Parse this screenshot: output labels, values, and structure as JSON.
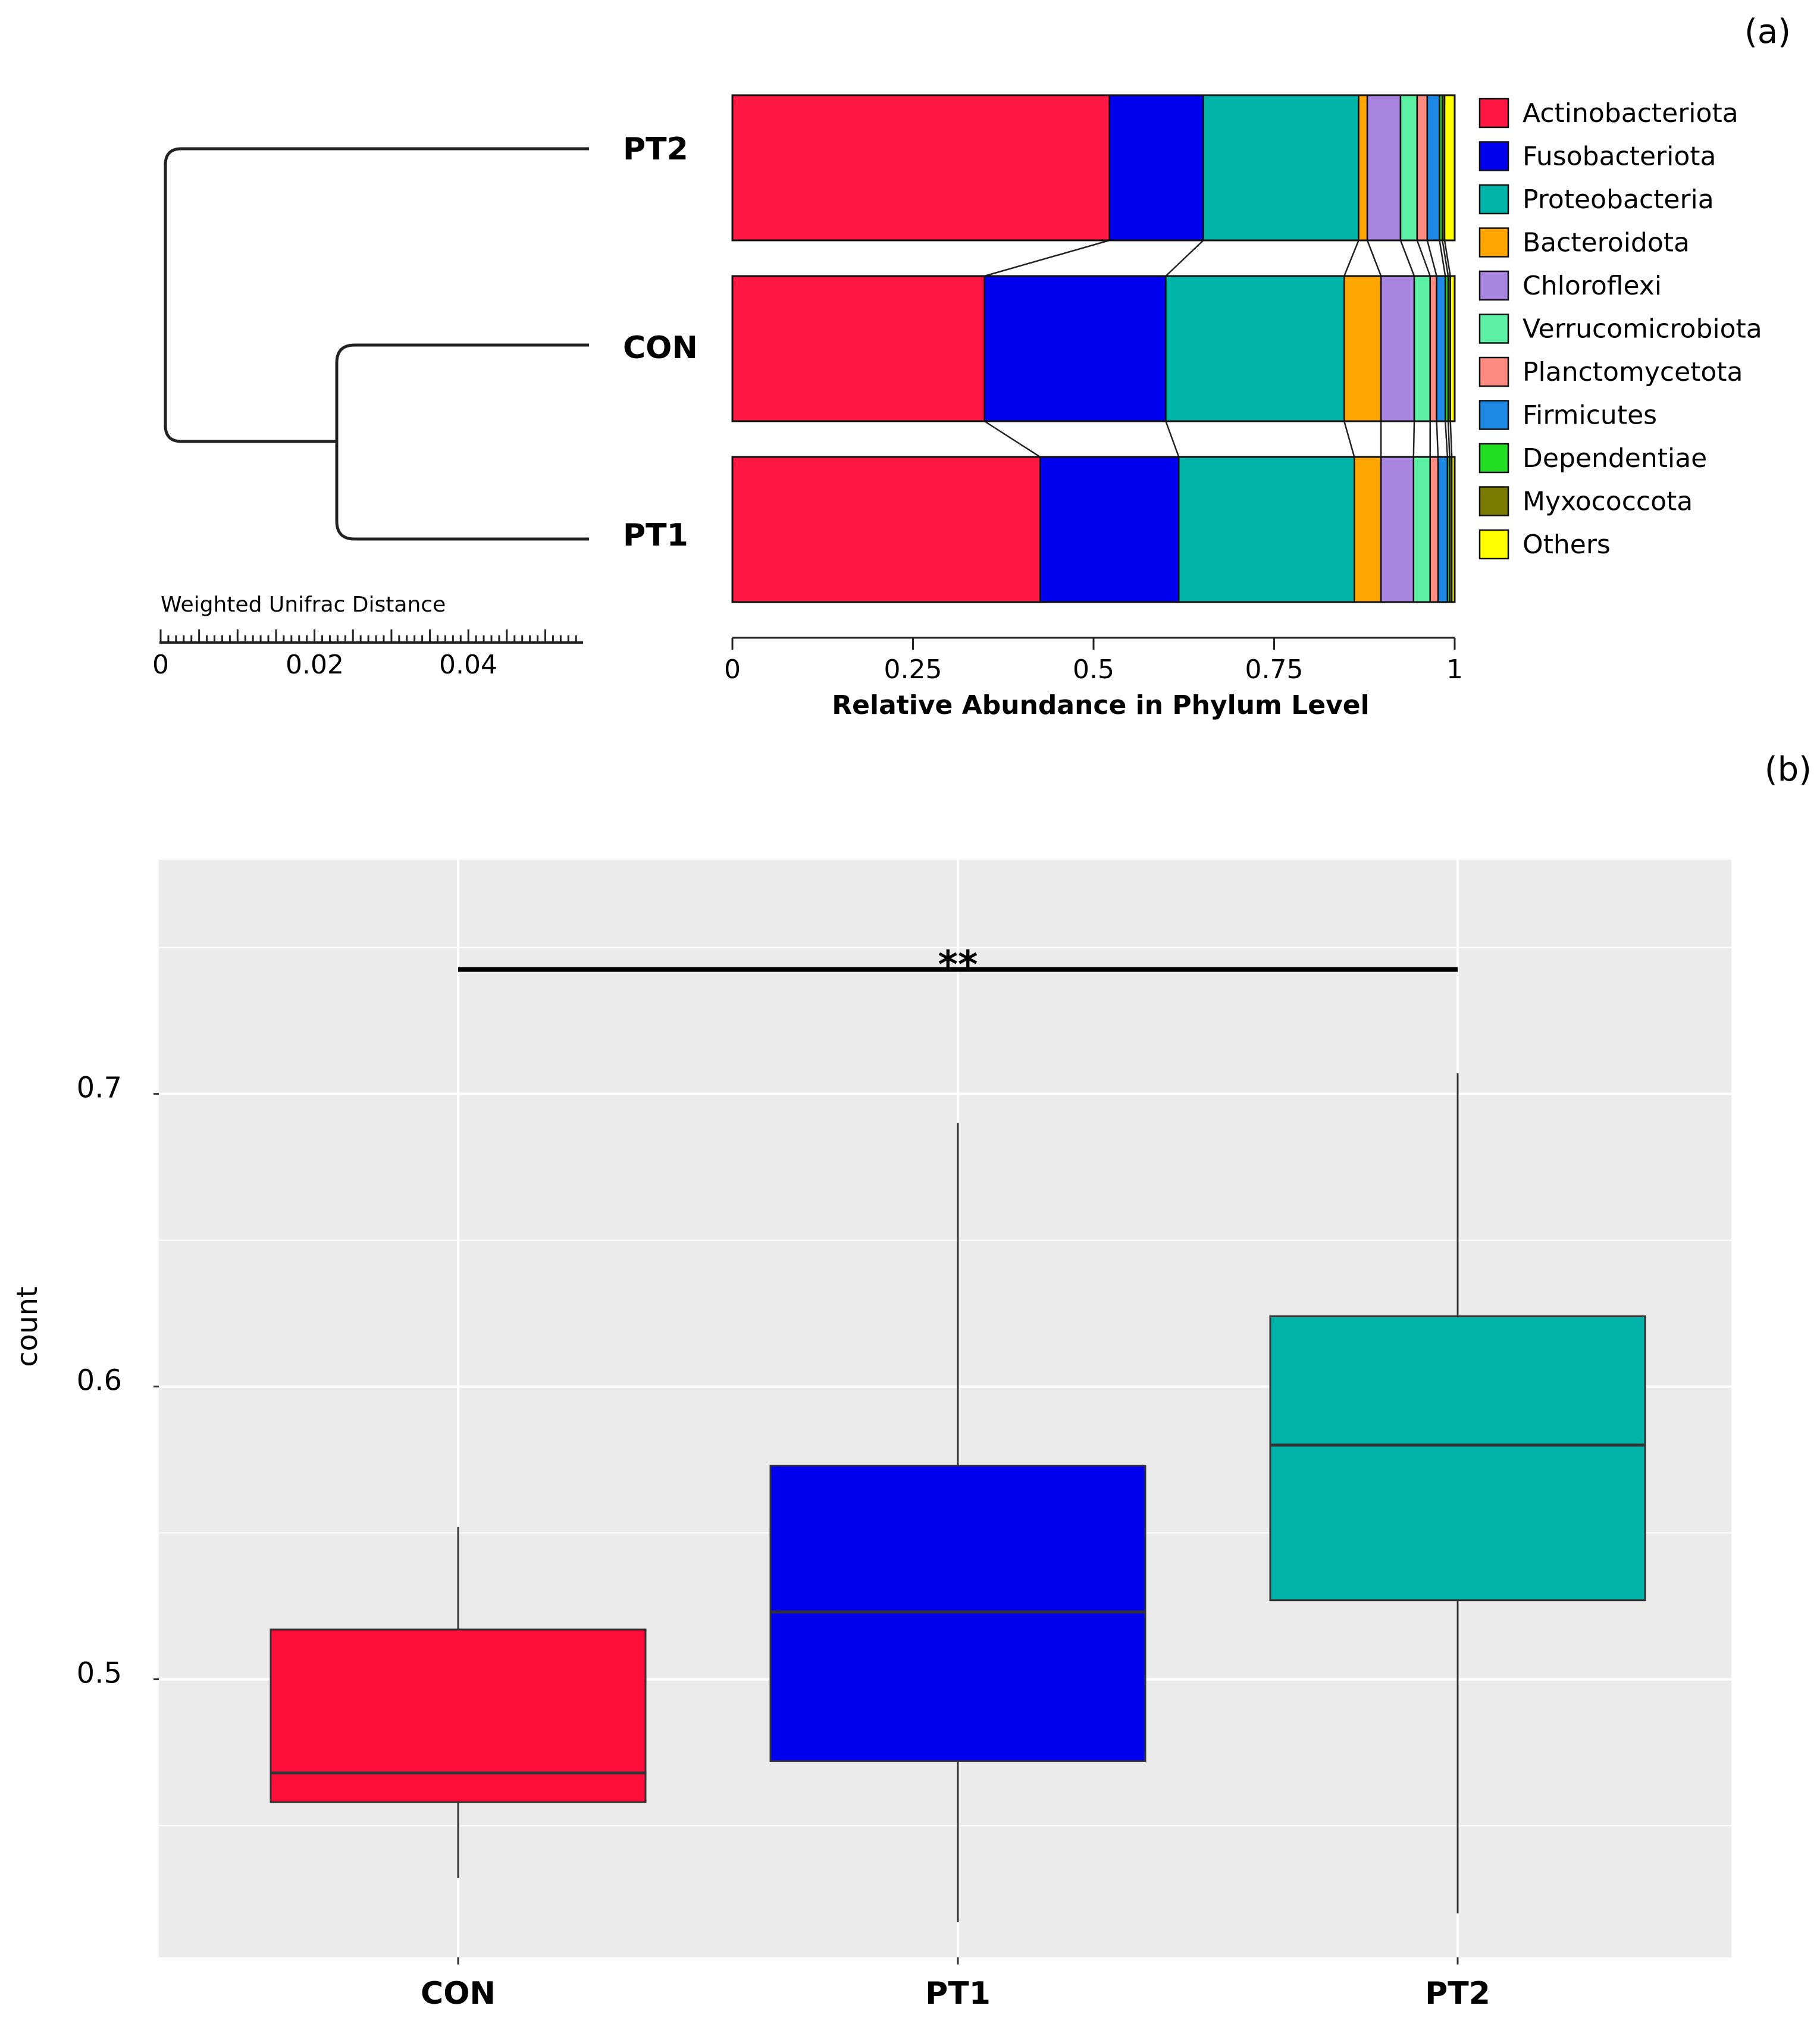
{
  "panel_labels": {
    "a": "(a)",
    "b": "(b)"
  },
  "colors": {
    "Actinobacteriota": "#ff1744",
    "Fusobacteriota": "#0000ee",
    "Proteobacteria": "#00b5a8",
    "Bacteroidota": "#ffa500",
    "Chloroflexi": "#a885e0",
    "Verrucomicrobiota": "#5cf0a5",
    "Planctomycetota": "#ff8a80",
    "Firmicutes": "#1e88e5",
    "Dependentiae": "#22dd22",
    "Myxococcota": "#7a7a00",
    "Others": "#ffff00",
    "box_CON": "#ff0d3b",
    "box_PT1": "#0000ee",
    "box_PT2": "#00b2a8",
    "panel_bg": "#ebebeb",
    "grid": "#ffffff"
  },
  "dendrogram": {
    "title": "Weighted Unifrac Distance",
    "tick_labels": [
      "0",
      "0.02",
      "0.04"
    ],
    "leaves": [
      "PT2",
      "CON",
      "PT1"
    ]
  },
  "chart_data": [
    {
      "type": "bar",
      "orientation": "horizontal-stacked",
      "xlabel": "Relative Abundance in Phylum Level",
      "xlim": [
        0,
        1
      ],
      "xticks": [
        "0",
        "0.25",
        "0.5",
        "0.75",
        "1"
      ],
      "categories": [
        "PT2",
        "CON",
        "PT1"
      ],
      "legend_position": "right",
      "series": [
        {
          "name": "Actinobacteriota",
          "values": [
            0.522,
            0.349,
            0.426
          ]
        },
        {
          "name": "Fusobacteriota",
          "values": [
            0.13,
            0.251,
            0.192
          ]
        },
        {
          "name": "Proteobacteria",
          "values": [
            0.215,
            0.247,
            0.243
          ]
        },
        {
          "name": "Bacteroidota",
          "values": [
            0.012,
            0.051,
            0.037
          ]
        },
        {
          "name": "Chloroflexi",
          "values": [
            0.046,
            0.046,
            0.045
          ]
        },
        {
          "name": "Verrucomicrobiota",
          "values": [
            0.023,
            0.022,
            0.023
          ]
        },
        {
          "name": "Planctomycetota",
          "values": [
            0.014,
            0.009,
            0.011
          ]
        },
        {
          "name": "Firmicutes",
          "values": [
            0.017,
            0.012,
            0.013
          ]
        },
        {
          "name": "Dependentiae",
          "values": [
            0.004,
            0.004,
            0.003
          ]
        },
        {
          "name": "Myxococcota",
          "values": [
            0.003,
            0.003,
            0.003
          ]
        },
        {
          "name": "Others",
          "values": [
            0.014,
            0.006,
            0.004
          ]
        }
      ]
    },
    {
      "type": "box",
      "ylabel": "count",
      "categories": [
        "CON",
        "PT1",
        "PT2"
      ],
      "ylim": [
        0.405,
        0.78
      ],
      "yticks": [
        0.5,
        0.6,
        0.7
      ],
      "ytick_labels": [
        "0.5",
        "0.6",
        "0.7"
      ],
      "grid": true,
      "boxes": [
        {
          "name": "CON",
          "whisker_low": 0.432,
          "q1": 0.458,
          "median": 0.468,
          "q3": 0.517,
          "whisker_high": 0.552
        },
        {
          "name": "PT1",
          "whisker_low": 0.417,
          "q1": 0.472,
          "median": 0.523,
          "q3": 0.573,
          "whisker_high": 0.69
        },
        {
          "name": "PT2",
          "whisker_low": 0.42,
          "q1": 0.527,
          "median": 0.58,
          "q3": 0.624,
          "whisker_high": 0.707
        }
      ],
      "significance": {
        "from": "CON",
        "to": "PT2",
        "label": "**",
        "y": 0.7425
      }
    }
  ]
}
